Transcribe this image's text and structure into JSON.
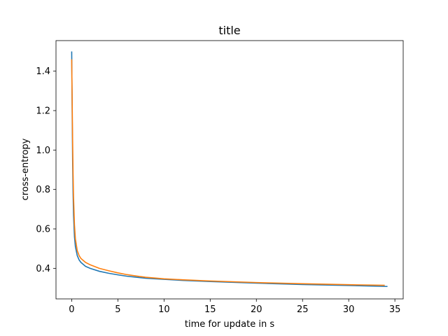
{
  "chart_data": {
    "type": "line",
    "title": "title",
    "xlabel": "time for update in s",
    "ylabel": "cross-entropy",
    "xlim": [
      -1.7,
      35.9
    ],
    "ylim": [
      0.245,
      1.555
    ],
    "xticks": [
      0,
      5,
      10,
      15,
      20,
      25,
      30,
      35
    ],
    "xtick_labels": [
      "0",
      "5",
      "10",
      "15",
      "20",
      "25",
      "30",
      "35"
    ],
    "yticks": [
      0.4,
      0.6,
      0.8,
      1.0,
      1.2,
      1.4
    ],
    "ytick_labels": [
      "0.4",
      "0.6",
      "0.8",
      "1.0",
      "1.2",
      "1.4"
    ],
    "grid": false,
    "legend": false,
    "series": [
      {
        "color": "#1f77b4",
        "x": [
          0,
          0.05,
          0.1,
          0.15,
          0.2,
          0.3,
          0.4,
          0.6,
          0.8,
          1.0,
          1.5,
          2,
          3,
          4,
          5,
          6,
          7,
          8,
          10,
          12,
          15,
          20,
          25,
          30,
          34.2
        ],
        "y": [
          1.5,
          1.2,
          0.95,
          0.78,
          0.67,
          0.56,
          0.51,
          0.465,
          0.443,
          0.43,
          0.41,
          0.4,
          0.385,
          0.375,
          0.367,
          0.36,
          0.355,
          0.35,
          0.344,
          0.339,
          0.333,
          0.325,
          0.318,
          0.313,
          0.308
        ]
      },
      {
        "color": "#ff7f0e",
        "x": [
          0,
          0.05,
          0.1,
          0.15,
          0.2,
          0.3,
          0.4,
          0.6,
          0.8,
          1.0,
          1.5,
          2,
          3,
          4,
          5,
          6,
          7,
          8,
          10,
          12,
          15,
          20,
          25,
          30,
          33.9
        ],
        "y": [
          1.46,
          1.25,
          1.05,
          0.88,
          0.76,
          0.62,
          0.55,
          0.49,
          0.465,
          0.45,
          0.43,
          0.418,
          0.4,
          0.388,
          0.377,
          0.368,
          0.361,
          0.355,
          0.347,
          0.342,
          0.336,
          0.328,
          0.322,
          0.317,
          0.314
        ]
      }
    ]
  }
}
